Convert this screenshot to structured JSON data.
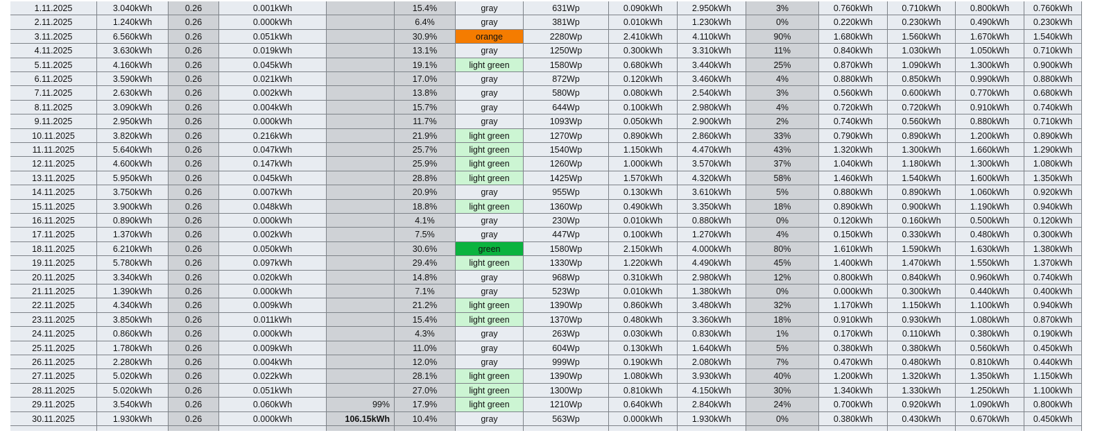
{
  "table": {
    "status_colors": {
      "orange": "#f57c00",
      "green": "#0bb33f",
      "light green": "#ccf5d3"
    },
    "rate_total": "99%",
    "energy_total": "106.15kWh",
    "rows": [
      [
        "1.11.2025",
        "3.040kWh",
        "0.26",
        "0.001kWh",
        "15.4%",
        "gray",
        "631Wp",
        "0.090kWh",
        "2.950kWh",
        "3%",
        "0.760kWh",
        "0.710kWh",
        "0.800kWh",
        "0.760kWh"
      ],
      [
        "2.11.2025",
        "1.240kWh",
        "0.26",
        "0.000kWh",
        "6.4%",
        "gray",
        "381Wp",
        "0.010kWh",
        "1.230kWh",
        "0%",
        "0.220kWh",
        "0.230kWh",
        "0.490kWh",
        "0.230kWh"
      ],
      [
        "3.11.2025",
        "6.560kWh",
        "0.26",
        "0.051kWh",
        "30.9%",
        "orange",
        "2280Wp",
        "2.410kWh",
        "4.110kWh",
        "90%",
        "1.680kWh",
        "1.560kWh",
        "1.670kWh",
        "1.540kWh"
      ],
      [
        "4.11.2025",
        "3.630kWh",
        "0.26",
        "0.019kWh",
        "13.1%",
        "gray",
        "1250Wp",
        "0.300kWh",
        "3.310kWh",
        "11%",
        "0.840kWh",
        "1.030kWh",
        "1.050kWh",
        "0.710kWh"
      ],
      [
        "5.11.2025",
        "4.160kWh",
        "0.26",
        "0.045kWh",
        "19.1%",
        "light green",
        "1580Wp",
        "0.680kWh",
        "3.440kWh",
        "25%",
        "0.870kWh",
        "1.090kWh",
        "1.300kWh",
        "0.900kWh"
      ],
      [
        "6.11.2025",
        "3.590kWh",
        "0.26",
        "0.021kWh",
        "17.0%",
        "gray",
        "872Wp",
        "0.120kWh",
        "3.460kWh",
        "4%",
        "0.880kWh",
        "0.850kWh",
        "0.990kWh",
        "0.880kWh"
      ],
      [
        "7.11.2025",
        "2.630kWh",
        "0.26",
        "0.002kWh",
        "13.8%",
        "gray",
        "580Wp",
        "0.080kWh",
        "2.540kWh",
        "3%",
        "0.560kWh",
        "0.600kWh",
        "0.770kWh",
        "0.680kWh"
      ],
      [
        "8.11.2025",
        "3.090kWh",
        "0.26",
        "0.004kWh",
        "15.7%",
        "gray",
        "644Wp",
        "0.100kWh",
        "2.980kWh",
        "4%",
        "0.720kWh",
        "0.720kWh",
        "0.910kWh",
        "0.740kWh"
      ],
      [
        "9.11.2025",
        "2.950kWh",
        "0.26",
        "0.000kWh",
        "11.7%",
        "gray",
        "1093Wp",
        "0.050kWh",
        "2.900kWh",
        "2%",
        "0.740kWh",
        "0.560kWh",
        "0.880kWh",
        "0.710kWh"
      ],
      [
        "10.11.2025",
        "3.820kWh",
        "0.26",
        "0.216kWh",
        "21.9%",
        "light green",
        "1270Wp",
        "0.890kWh",
        "2.860kWh",
        "33%",
        "0.790kWh",
        "0.890kWh",
        "1.200kWh",
        "0.890kWh"
      ],
      [
        "11.11.2025",
        "5.640kWh",
        "0.26",
        "0.047kWh",
        "25.7%",
        "light green",
        "1540Wp",
        "1.150kWh",
        "4.470kWh",
        "43%",
        "1.320kWh",
        "1.300kWh",
        "1.660kWh",
        "1.290kWh"
      ],
      [
        "12.11.2025",
        "4.600kWh",
        "0.26",
        "0.147kWh",
        "25.9%",
        "light green",
        "1260Wp",
        "1.000kWh",
        "3.570kWh",
        "37%",
        "1.040kWh",
        "1.180kWh",
        "1.300kWh",
        "1.080kWh"
      ],
      [
        "13.11.2025",
        "5.950kWh",
        "0.26",
        "0.045kWh",
        "28.8%",
        "light green",
        "1425Wp",
        "1.570kWh",
        "4.320kWh",
        "58%",
        "1.460kWh",
        "1.540kWh",
        "1.600kWh",
        "1.350kWh"
      ],
      [
        "14.11.2025",
        "3.750kWh",
        "0.26",
        "0.007kWh",
        "20.9%",
        "gray",
        "955Wp",
        "0.130kWh",
        "3.610kWh",
        "5%",
        "0.880kWh",
        "0.890kWh",
        "1.060kWh",
        "0.920kWh"
      ],
      [
        "15.11.2025",
        "3.900kWh",
        "0.26",
        "0.048kWh",
        "18.8%",
        "light green",
        "1360Wp",
        "0.490kWh",
        "3.350kWh",
        "18%",
        "0.890kWh",
        "0.900kWh",
        "1.190kWh",
        "0.940kWh"
      ],
      [
        "16.11.2025",
        "0.890kWh",
        "0.26",
        "0.000kWh",
        "4.1%",
        "gray",
        "230Wp",
        "0.010kWh",
        "0.880kWh",
        "0%",
        "0.120kWh",
        "0.160kWh",
        "0.500kWh",
        "0.120kWh"
      ],
      [
        "17.11.2025",
        "1.370kWh",
        "0.26",
        "0.002kWh",
        "7.5%",
        "gray",
        "447Wp",
        "0.100kWh",
        "1.270kWh",
        "4%",
        "0.150kWh",
        "0.330kWh",
        "0.480kWh",
        "0.300kWh"
      ],
      [
        "18.11.2025",
        "6.210kWh",
        "0.26",
        "0.050kWh",
        "30.6%",
        "green",
        "1580Wp",
        "2.150kWh",
        "4.000kWh",
        "80%",
        "1.610kWh",
        "1.590kWh",
        "1.630kWh",
        "1.380kWh"
      ],
      [
        "19.11.2025",
        "5.780kWh",
        "0.26",
        "0.097kWh",
        "29.4%",
        "light green",
        "1330Wp",
        "1.220kWh",
        "4.490kWh",
        "45%",
        "1.400kWh",
        "1.470kWh",
        "1.550kWh",
        "1.370kWh"
      ],
      [
        "20.11.2025",
        "3.340kWh",
        "0.26",
        "0.020kWh",
        "14.8%",
        "gray",
        "968Wp",
        "0.310kWh",
        "2.980kWh",
        "12%",
        "0.800kWh",
        "0.840kWh",
        "0.960kWh",
        "0.740kWh"
      ],
      [
        "21.11.2025",
        "1.390kWh",
        "0.26",
        "0.000kWh",
        "7.1%",
        "gray",
        "523Wp",
        "0.010kWh",
        "1.380kWh",
        "0%",
        "0.000kWh",
        "0.300kWh",
        "0.440kWh",
        "0.400kWh"
      ],
      [
        "22.11.2025",
        "4.340kWh",
        "0.26",
        "0.009kWh",
        "21.2%",
        "light green",
        "1390Wp",
        "0.860kWh",
        "3.480kWh",
        "32%",
        "1.170kWh",
        "1.150kWh",
        "1.100kWh",
        "0.940kWh"
      ],
      [
        "23.11.2025",
        "3.850kWh",
        "0.26",
        "0.011kWh",
        "15.4%",
        "light green",
        "1370Wp",
        "0.480kWh",
        "3.360kWh",
        "18%",
        "0.910kWh",
        "0.930kWh",
        "1.080kWh",
        "0.870kWh"
      ],
      [
        "24.11.2025",
        "0.860kWh",
        "0.26",
        "0.000kWh",
        "4.3%",
        "gray",
        "263Wp",
        "0.030kWh",
        "0.830kWh",
        "1%",
        "0.170kWh",
        "0.110kWh",
        "0.380kWh",
        "0.190kWh"
      ],
      [
        "25.11.2025",
        "1.780kWh",
        "0.26",
        "0.009kWh",
        "11.0%",
        "gray",
        "604Wp",
        "0.130kWh",
        "1.640kWh",
        "5%",
        "0.380kWh",
        "0.380kWh",
        "0.560kWh",
        "0.450kWh"
      ],
      [
        "26.11.2025",
        "2.280kWh",
        "0.26",
        "0.004kWh",
        "12.0%",
        "gray",
        "999Wp",
        "0.190kWh",
        "2.080kWh",
        "7%",
        "0.470kWh",
        "0.480kWh",
        "0.810kWh",
        "0.440kWh"
      ],
      [
        "27.11.2025",
        "5.020kWh",
        "0.26",
        "0.022kWh",
        "28.1%",
        "light green",
        "1390Wp",
        "1.080kWh",
        "3.930kWh",
        "40%",
        "1.200kWh",
        "1.320kWh",
        "1.350kWh",
        "1.150kWh"
      ],
      [
        "28.11.2025",
        "5.020kWh",
        "0.26",
        "0.051kWh",
        "27.0%",
        "light green",
        "1300Wp",
        "0.810kWh",
        "4.150kWh",
        "30%",
        "1.340kWh",
        "1.330kWh",
        "1.250kWh",
        "1.100kWh"
      ],
      [
        "29.11.2025",
        "3.540kWh",
        "0.26",
        "0.060kWh",
        "17.9%",
        "light green",
        "1210Wp",
        "0.640kWh",
        "2.840kWh",
        "24%",
        "0.700kWh",
        "0.920kWh",
        "1.090kWh",
        "0.800kWh"
      ],
      [
        "30.11.2025",
        "1.930kWh",
        "0.26",
        "0.000kWh",
        "10.4%",
        "gray",
        "563Wp",
        "0.000kWh",
        "1.930kWh",
        "0%",
        "0.380kWh",
        "0.430kWh",
        "0.670kWh",
        "0.450kWh"
      ]
    ]
  }
}
